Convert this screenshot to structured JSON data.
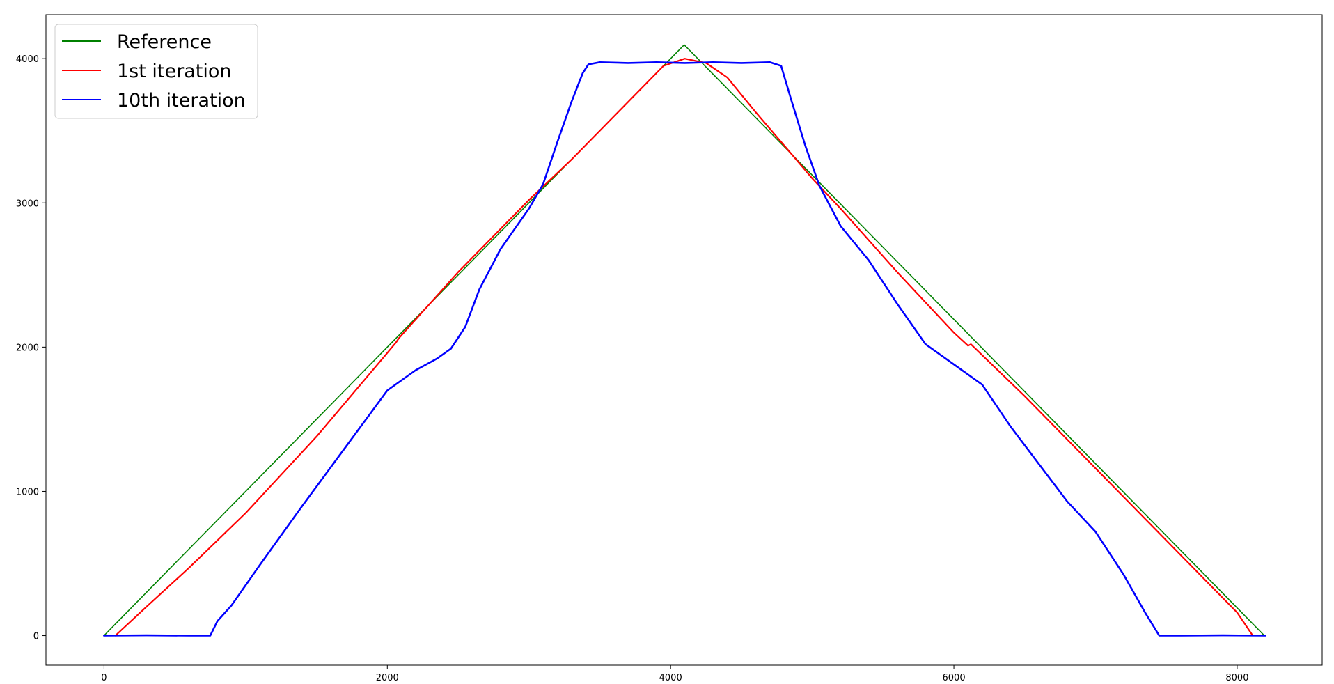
{
  "chart_data": {
    "type": "line",
    "title": "",
    "xlabel": "",
    "ylabel": "",
    "xlim": [
      -410,
      8600
    ],
    "ylim": [
      -205,
      4305
    ],
    "xticks": [
      0,
      2000,
      4000,
      6000,
      8000
    ],
    "yticks": [
      0,
      1000,
      2000,
      3000,
      4000
    ],
    "grid": false,
    "legend_position": "top-left",
    "series": [
      {
        "name": "Reference",
        "color": "#008000",
        "x": [
          0,
          4096,
          8192
        ],
        "y": [
          0,
          4096,
          0
        ]
      },
      {
        "name": "1st iteration",
        "color": "#ff0000",
        "x": [
          80,
          300,
          600,
          1000,
          1500,
          2000,
          2060,
          2080,
          2500,
          3000,
          3300,
          3600,
          3800,
          3950,
          4100,
          4250,
          4400,
          4600,
          4800,
          5000,
          5200,
          5600,
          6000,
          6100,
          6120,
          6500,
          7000,
          7500,
          7800,
          8000,
          8110
        ],
        "y": [
          0,
          200,
          470,
          850,
          1380,
          1960,
          2030,
          2060,
          2520,
          3020,
          3300,
          3600,
          3800,
          3950,
          4000,
          3970,
          3870,
          3630,
          3400,
          3170,
          2960,
          2520,
          2100,
          2010,
          2020,
          1660,
          1160,
          660,
          360,
          160,
          0
        ]
      },
      {
        "name": "10th iteration",
        "color": "#0000ff",
        "x": [
          0,
          300,
          600,
          750,
          800,
          900,
          1100,
          1400,
          1700,
          2000,
          2200,
          2350,
          2450,
          2550,
          2650,
          2800,
          3000,
          3100,
          3200,
          3300,
          3380,
          3420,
          3500,
          3700,
          3900,
          4100,
          4300,
          4500,
          4700,
          4780,
          4850,
          4950,
          5050,
          5200,
          5400,
          5600,
          5800,
          6000,
          6200,
          6400,
          6600,
          6800,
          7000,
          7200,
          7350,
          7450,
          7600,
          7900,
          8200
        ],
        "y": [
          0,
          2,
          0,
          0,
          100,
          210,
          490,
          900,
          1300,
          1700,
          1840,
          1920,
          1990,
          2140,
          2400,
          2680,
          2960,
          3130,
          3420,
          3700,
          3900,
          3960,
          3975,
          3970,
          3975,
          3970,
          3975,
          3970,
          3975,
          3950,
          3720,
          3400,
          3120,
          2840,
          2600,
          2300,
          2020,
          1880,
          1740,
          1450,
          1190,
          930,
          720,
          420,
          160,
          0,
          0,
          2,
          0
        ]
      }
    ]
  }
}
